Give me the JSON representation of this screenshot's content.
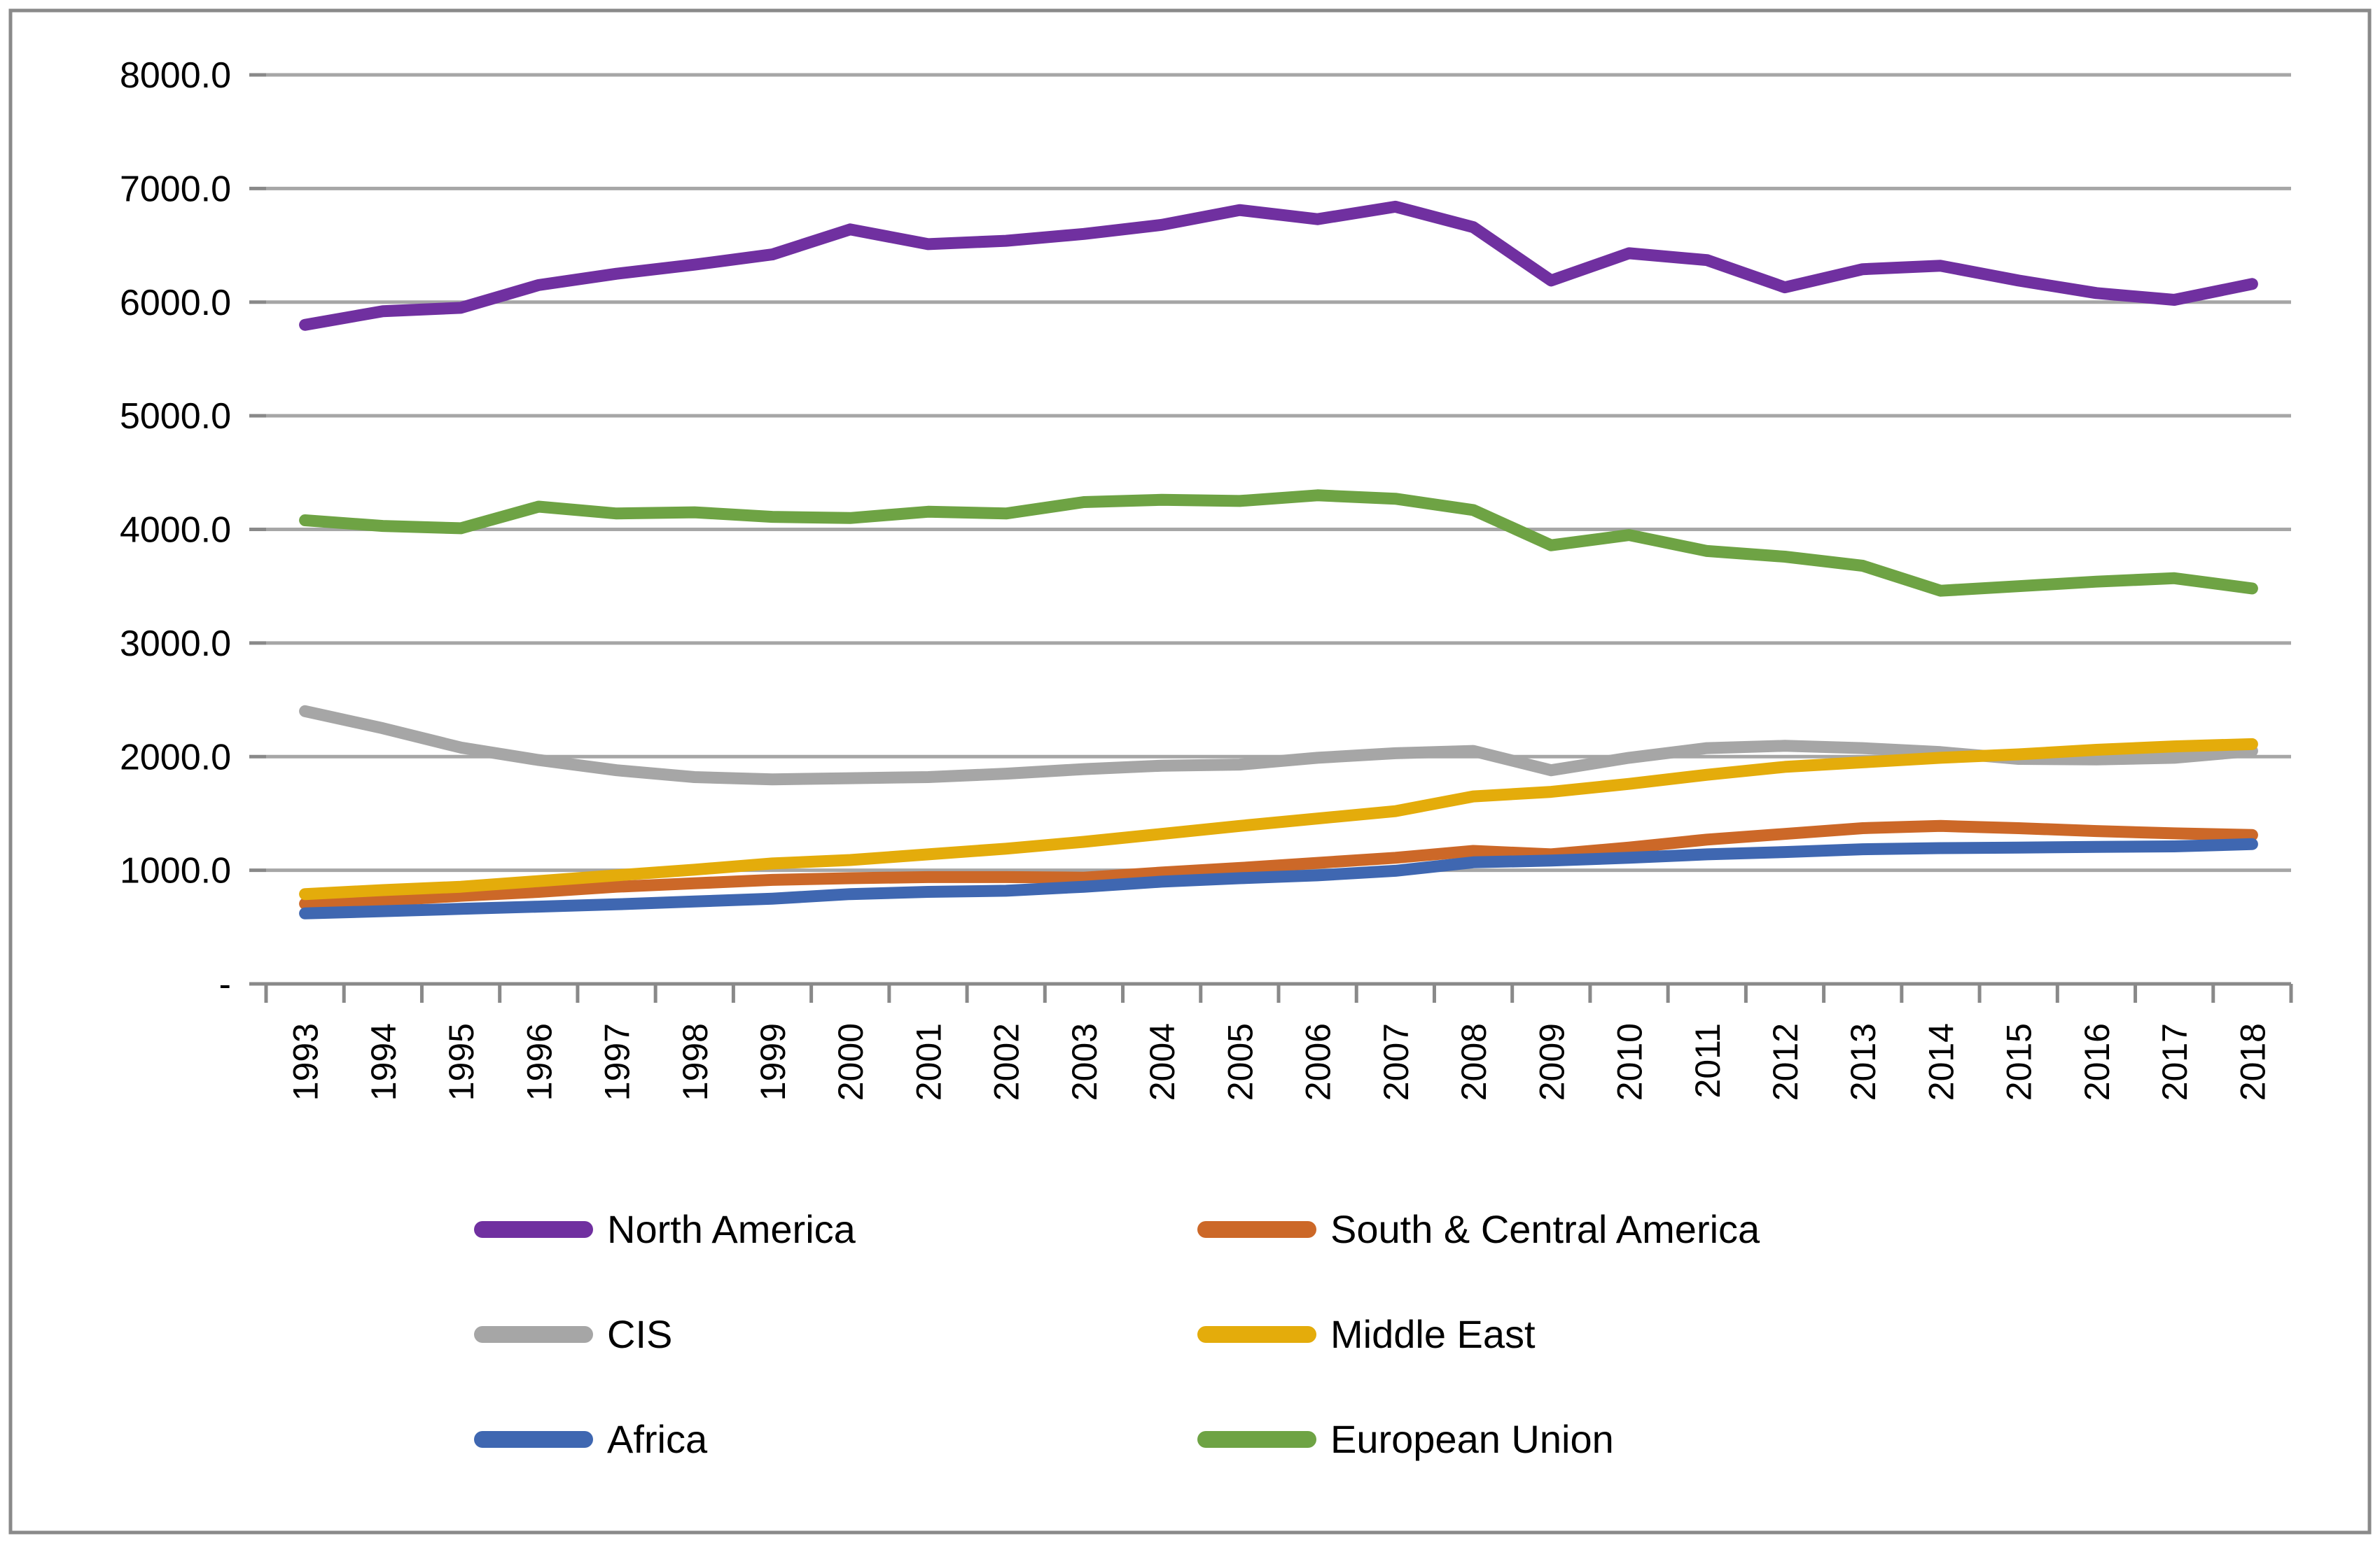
{
  "chart_data": {
    "type": "line",
    "title": "",
    "xlabel": "",
    "ylabel": "",
    "ylim": [
      0,
      8000
    ],
    "ytick_step": 1000,
    "ytick_labels": [
      "-",
      "1000.0",
      "2000.0",
      "3000.0",
      "4000.0",
      "5000.0",
      "6000.0",
      "7000.0",
      "8000.0"
    ],
    "grid": "horizontal",
    "legend_position": "bottom",
    "categories": [
      "1993",
      "1994",
      "1995",
      "1996",
      "1997",
      "1998",
      "1999",
      "2000",
      "2001",
      "2002",
      "2003",
      "2004",
      "2005",
      "2006",
      "2007",
      "2008",
      "2009",
      "2010",
      "2011",
      "2012",
      "2013",
      "2014",
      "2015",
      "2016",
      "2017",
      "2018"
    ],
    "series": [
      {
        "name": "North America",
        "color": "#7030A0",
        "values": [
          5800,
          5920,
          5950,
          6150,
          6250,
          6330,
          6420,
          6640,
          6510,
          6540,
          6600,
          6680,
          6810,
          6730,
          6840,
          6660,
          6190,
          6430,
          6370,
          6130,
          6290,
          6320,
          6190,
          6080,
          6020,
          6160
        ]
      },
      {
        "name": "South & Central America",
        "color": "#CC6828",
        "values": [
          705,
          735,
          775,
          810,
          855,
          885,
          915,
          930,
          940,
          940,
          935,
          980,
          1020,
          1065,
          1110,
          1170,
          1140,
          1200,
          1270,
          1320,
          1370,
          1390,
          1370,
          1345,
          1325,
          1310
        ]
      },
      {
        "name": "CIS",
        "color": "#A6A6A6",
        "values": [
          2400,
          2250,
          2080,
          1970,
          1880,
          1820,
          1800,
          1810,
          1820,
          1850,
          1890,
          1920,
          1930,
          1990,
          2030,
          2050,
          1880,
          1990,
          2075,
          2095,
          2075,
          2040,
          1980,
          1975,
          1990,
          2050
        ]
      },
      {
        "name": "Middle East",
        "color": "#E4AC0B",
        "values": [
          790,
          825,
          855,
          905,
          955,
          1005,
          1060,
          1090,
          1140,
          1190,
          1250,
          1320,
          1390,
          1455,
          1520,
          1650,
          1690,
          1760,
          1840,
          1910,
          1950,
          1990,
          2020,
          2060,
          2090,
          2110
        ]
      },
      {
        "name": "Africa",
        "color": "#3F67B1",
        "values": [
          620,
          640,
          660,
          680,
          700,
          725,
          750,
          790,
          810,
          820,
          855,
          900,
          930,
          955,
          995,
          1070,
          1085,
          1110,
          1140,
          1160,
          1185,
          1195,
          1200,
          1205,
          1210,
          1230
        ]
      },
      {
        "name": "European Union",
        "color": "#6EA344",
        "values": [
          4080,
          4030,
          4010,
          4200,
          4140,
          4150,
          4110,
          4100,
          4155,
          4140,
          4240,
          4260,
          4250,
          4300,
          4270,
          4170,
          3860,
          3950,
          3810,
          3760,
          3680,
          3460,
          3500,
          3540,
          3570,
          3480
        ]
      }
    ],
    "legend_rows": [
      [
        0,
        1
      ],
      [
        2,
        3
      ],
      [
        4,
        5
      ]
    ]
  },
  "style": {
    "gridline_color": "#A6A6A6",
    "axis_color": "#898989",
    "tick_color": "#898989",
    "text_color": "#000000",
    "frame_color": "#8A8A8A",
    "background": "#FFFFFF"
  }
}
